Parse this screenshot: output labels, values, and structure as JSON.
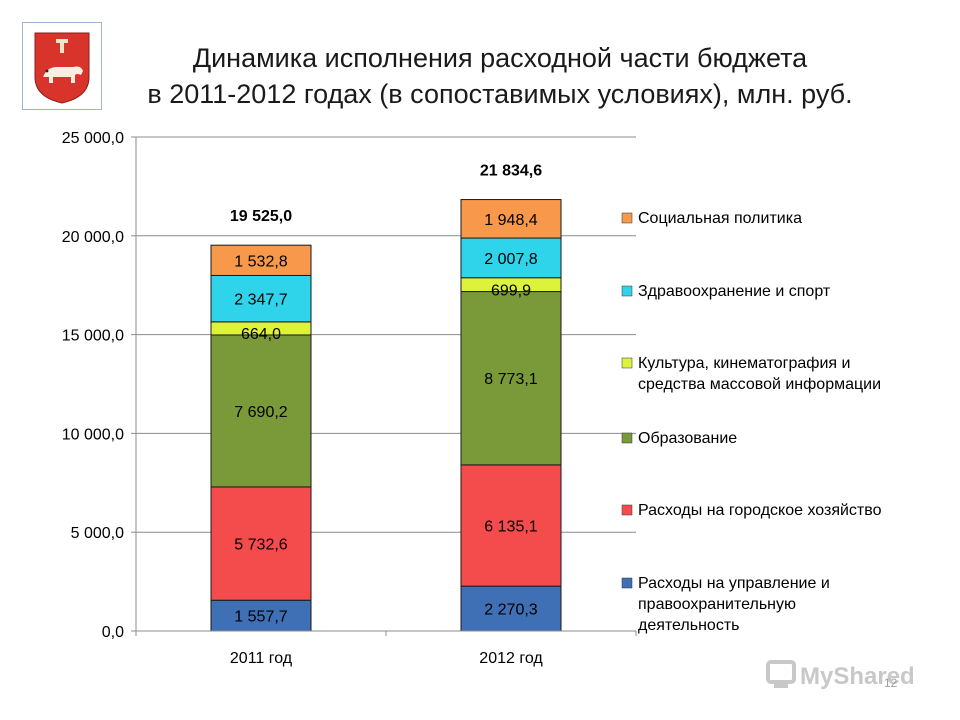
{
  "slide": {
    "title_line1": "Динамика исполнения расходной части бюджета",
    "title_line2": "в 2011-2012 годах (в сопоставимых условиях), млн. руб.",
    "page_number": "12",
    "watermark_text": "MyShared"
  },
  "chart_data": {
    "type": "bar",
    "stacked": true,
    "title": "",
    "xlabel": "",
    "ylabel": "",
    "categories": [
      "2011 год",
      "2012 год"
    ],
    "ylim": [
      0,
      25000
    ],
    "yticks": [
      0,
      5000,
      10000,
      15000,
      20000,
      25000
    ],
    "ytick_labels": [
      "0,0",
      "5 000,0",
      "10 000,0",
      "15 000,0",
      "20 000,0",
      "25 000,0"
    ],
    "grid": true,
    "legend_position": "right",
    "series": [
      {
        "name": "Расходы на управление и правоохранительную деятельность",
        "values": [
          1557.7,
          2270.3
        ],
        "labels": [
          "1 557,7",
          "2 270,3"
        ],
        "color": "#3f6fb5"
      },
      {
        "name": "Расходы на городское хозяйство",
        "values": [
          5732.6,
          6135.1
        ],
        "labels": [
          "5 732,6",
          "6 135,1"
        ],
        "color": "#f44c4c"
      },
      {
        "name": "Образование",
        "values": [
          7690.2,
          8773.1
        ],
        "labels": [
          "7 690,2",
          "8 773,1"
        ],
        "color": "#7a9a3a"
      },
      {
        "name": "Культура, кинематография и средства массовой информации",
        "values": [
          664.0,
          699.9
        ],
        "labels": [
          "664,0",
          "699,9"
        ],
        "color": "#ddf23a"
      },
      {
        "name": "Здравоохранение и спорт",
        "values": [
          2347.7,
          2007.8
        ],
        "labels": [
          "2 347,7",
          "2 007,8"
        ],
        "color": "#2fd3ea"
      },
      {
        "name": "Социальная политика",
        "values": [
          1532.8,
          1948.4
        ],
        "labels": [
          "1 532,8",
          "1 948,4"
        ],
        "color": "#f7984a"
      }
    ],
    "totals": [
      19525.0,
      21834.6
    ],
    "total_labels": [
      "19 525,0",
      "21 834,6"
    ],
    "legend": {
      "order": [
        "Социальная политика",
        "Здравоохранение и спорт",
        "Культура, кинематография и средства массовой информации",
        "Образование",
        "Расходы на городское хозяйство",
        "Расходы на управление и правоохранительную деятельность"
      ],
      "lines": [
        [
          "Социальная политика"
        ],
        [
          "Здравоохранение и спорт"
        ],
        [
          "Культура, кинематография и",
          "средства массовой информации"
        ],
        [
          "Образование"
        ],
        [
          "Расходы на городское хозяйство"
        ],
        [
          "Расходы на управление и",
          "правоохранительную",
          "деятельность"
        ]
      ]
    }
  }
}
